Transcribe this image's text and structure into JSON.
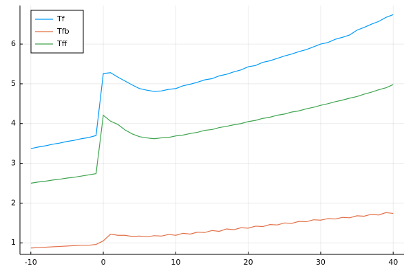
{
  "chart_data": {
    "type": "line",
    "x": [
      -10,
      -9,
      -8,
      -7,
      -6,
      -5,
      -4,
      -3,
      -2,
      -1,
      0,
      1,
      2,
      3,
      4,
      5,
      6,
      7,
      8,
      9,
      10,
      11,
      12,
      13,
      14,
      15,
      16,
      17,
      18,
      19,
      20,
      21,
      22,
      23,
      24,
      25,
      26,
      27,
      28,
      29,
      30,
      31,
      32,
      33,
      34,
      35,
      36,
      37,
      38,
      39,
      40
    ],
    "series": [
      {
        "name": "Tf",
        "color": "#009af9",
        "values": [
          3.37,
          3.41,
          3.44,
          3.48,
          3.51,
          3.55,
          3.58,
          3.62,
          3.65,
          3.7,
          5.26,
          5.28,
          5.17,
          5.07,
          4.97,
          4.88,
          4.84,
          4.81,
          4.82,
          4.86,
          4.88,
          4.95,
          4.99,
          5.04,
          5.1,
          5.13,
          5.2,
          5.24,
          5.3,
          5.35,
          5.43,
          5.46,
          5.54,
          5.58,
          5.64,
          5.7,
          5.75,
          5.81,
          5.86,
          5.93,
          6.0,
          6.04,
          6.12,
          6.17,
          6.23,
          6.35,
          6.42,
          6.5,
          6.57,
          6.67,
          6.74
        ]
      },
      {
        "name": "Tfb",
        "color": "#e26f46",
        "values": [
          0.87,
          0.88,
          0.89,
          0.9,
          0.91,
          0.92,
          0.93,
          0.94,
          0.94,
          0.96,
          1.05,
          1.22,
          1.19,
          1.19,
          1.16,
          1.17,
          1.15,
          1.18,
          1.17,
          1.21,
          1.19,
          1.24,
          1.22,
          1.27,
          1.26,
          1.31,
          1.29,
          1.35,
          1.33,
          1.38,
          1.37,
          1.42,
          1.41,
          1.46,
          1.45,
          1.5,
          1.49,
          1.54,
          1.53,
          1.58,
          1.57,
          1.61,
          1.6,
          1.64,
          1.63,
          1.68,
          1.67,
          1.72,
          1.7,
          1.76,
          1.74
        ]
      },
      {
        "name": "Tff",
        "color": "#3da44d",
        "values": [
          2.5,
          2.53,
          2.55,
          2.58,
          2.6,
          2.63,
          2.65,
          2.68,
          2.71,
          2.74,
          4.21,
          4.06,
          3.98,
          3.84,
          3.74,
          3.67,
          3.64,
          3.62,
          3.64,
          3.65,
          3.69,
          3.71,
          3.75,
          3.78,
          3.83,
          3.85,
          3.9,
          3.93,
          3.97,
          4.0,
          4.05,
          4.08,
          4.13,
          4.16,
          4.21,
          4.24,
          4.29,
          4.32,
          4.37,
          4.41,
          4.46,
          4.5,
          4.55,
          4.59,
          4.64,
          4.68,
          4.74,
          4.79,
          4.85,
          4.9,
          4.98
        ]
      }
    ],
    "xlim": [
      -11.5,
      41.5
    ],
    "xticks": [
      -10,
      0,
      10,
      20,
      30,
      40
    ],
    "ylim": [
      0.71,
      6.97
    ],
    "yticks": [
      1,
      2,
      3,
      4,
      5,
      6
    ],
    "grid": true,
    "legend": "top-left"
  }
}
